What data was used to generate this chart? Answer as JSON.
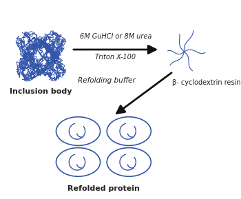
{
  "bg_color": "#ffffff",
  "blue": "#3355aa",
  "dark_blue": "#2244aa",
  "arrow_color": "#111111",
  "label_inclusion_body": "Inclusion body",
  "label_refolded": "Refolded protein",
  "label_arrow1_line1": "6M GuHCl or 8M urea",
  "label_arrow1_line2": "Triton X-100",
  "label_arrow2": "Refolding buffer",
  "label_beta": "β- cyclodextrin resin",
  "figsize": [
    3.5,
    2.89
  ],
  "dpi": 100
}
